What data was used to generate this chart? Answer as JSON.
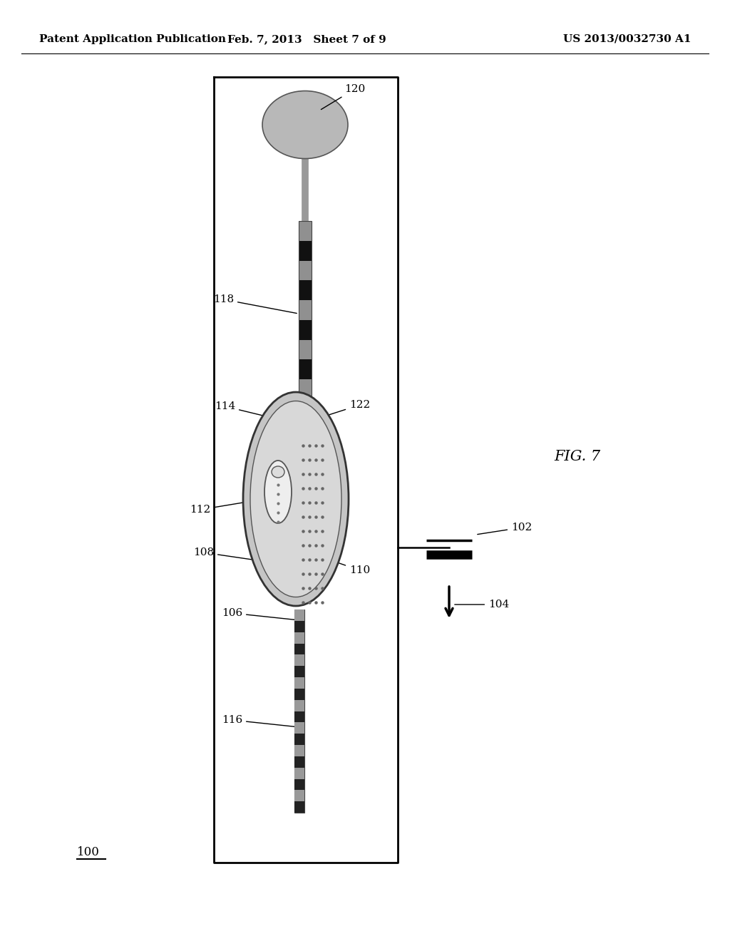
{
  "title_left": "Patent Application Publication",
  "title_center": "Feb. 7, 2013   Sheet 7 of 9",
  "title_right": "US 2013/0032730 A1",
  "fig_label": "FIG. 7",
  "ref_100": "100",
  "ref_102": "102",
  "ref_104": "104",
  "ref_106": "106",
  "ref_108": "108",
  "ref_110": "110",
  "ref_112": "112",
  "ref_114": "114",
  "ref_116": "116",
  "ref_118": "118",
  "ref_120": "120",
  "ref_122": "122",
  "bg_color": "#ffffff"
}
